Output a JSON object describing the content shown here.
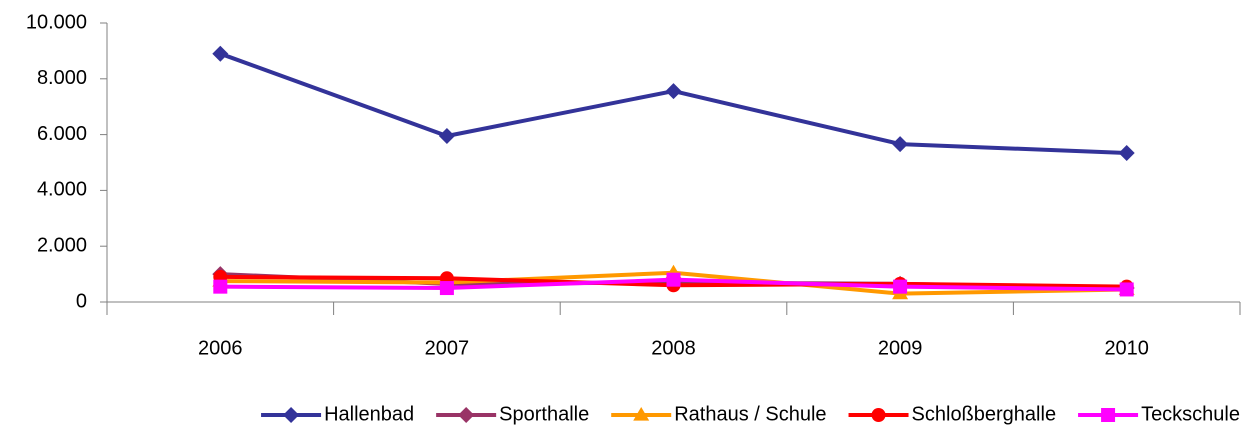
{
  "chart_data": {
    "type": "line",
    "categories": [
      "2006",
      "2007",
      "2008",
      "2009",
      "2010"
    ],
    "series": [
      {
        "name": "Hallenbad",
        "color": "#333399",
        "marker": "diamond",
        "values": [
          8900,
          5950,
          7560,
          5660,
          5340
        ]
      },
      {
        "name": "Sporthalle",
        "color": "#993366",
        "marker": "diamond",
        "values": [
          1000,
          650,
          700,
          650,
          500
        ]
      },
      {
        "name": "Rathaus / Schule",
        "color": "#ff9900",
        "marker": "triangle",
        "values": [
          750,
          700,
          1050,
          300,
          450
        ]
      },
      {
        "name": "Schloßberghalle",
        "color": "#ff0000",
        "marker": "circle",
        "values": [
          900,
          850,
          600,
          650,
          550
        ]
      },
      {
        "name": "Teckschule",
        "color": "#ff00ff",
        "marker": "square",
        "values": [
          550,
          500,
          800,
          550,
          450
        ]
      }
    ],
    "ylim": [
      0,
      10000
    ],
    "yticks": [
      0,
      {
        "value": 2000,
        "label": "2.000"
      },
      {
        "value": 4000,
        "label": "4.000"
      },
      {
        "value": 6000,
        "label": "6.000"
      },
      {
        "value": 8000,
        "label": "8.000"
      },
      {
        "value": 10000,
        "label": "10.000"
      }
    ],
    "grid": false,
    "legend": "bottom"
  }
}
